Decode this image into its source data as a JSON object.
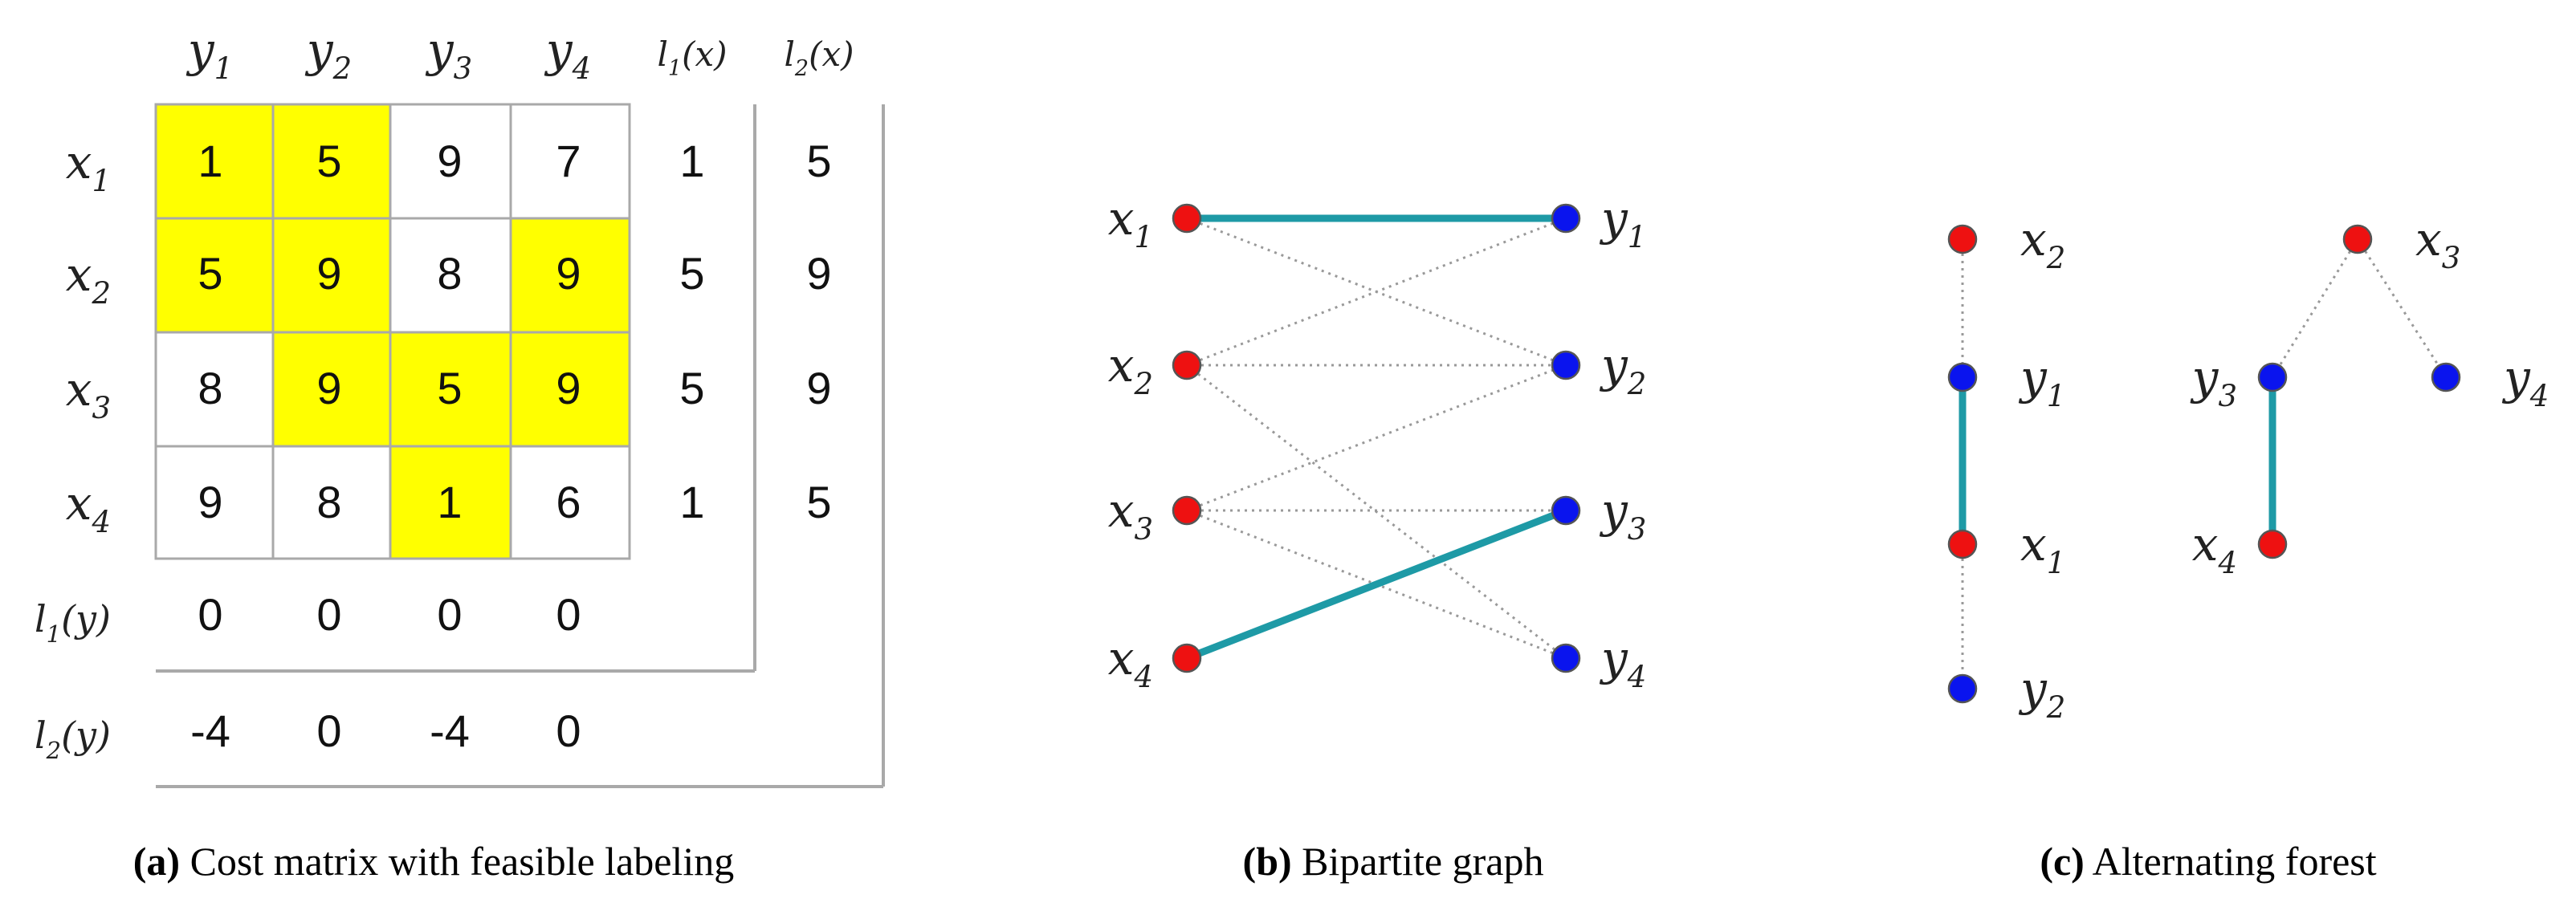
{
  "colors": {
    "highlight": "#ffff00",
    "matched_edge": "#1e9aa6",
    "x_node": "#ee1111",
    "y_node": "#0a14ee",
    "dotted_edge": "#999999",
    "grid": "#a9a9a9"
  },
  "panel_a": {
    "caption_tag": "(a)",
    "caption_text": " Cost matrix with feasible labeling",
    "col_headers": [
      {
        "main": "y",
        "sub": "1"
      },
      {
        "main": "y",
        "sub": "2"
      },
      {
        "main": "y",
        "sub": "3"
      },
      {
        "main": "y",
        "sub": "4"
      },
      {
        "main": "l",
        "sub": "1",
        "suffix": "(x)"
      },
      {
        "main": "l",
        "sub": "2",
        "suffix": "(x)"
      }
    ],
    "row_headers": [
      {
        "main": "x",
        "sub": "1"
      },
      {
        "main": "x",
        "sub": "2"
      },
      {
        "main": "x",
        "sub": "3"
      },
      {
        "main": "x",
        "sub": "4"
      },
      {
        "main": "l",
        "sub": "1",
        "suffix": "(y)"
      },
      {
        "main": "l",
        "sub": "2",
        "suffix": "(y)"
      }
    ],
    "matrix": [
      [
        1,
        5,
        9,
        7
      ],
      [
        5,
        9,
        8,
        9
      ],
      [
        8,
        9,
        5,
        9
      ],
      [
        9,
        8,
        1,
        6
      ]
    ],
    "highlighted": [
      [
        true,
        true,
        false,
        false
      ],
      [
        true,
        true,
        false,
        true
      ],
      [
        false,
        true,
        true,
        true
      ],
      [
        false,
        false,
        true,
        false
      ]
    ],
    "l1_x": [
      1,
      5,
      5,
      1
    ],
    "l2_x": [
      5,
      9,
      9,
      5
    ],
    "l1_y": [
      0,
      0,
      0,
      0
    ],
    "l2_y": [
      -4,
      0,
      -4,
      0
    ]
  },
  "panel_b": {
    "caption_tag": "(b)",
    "caption_text": " Bipartite graph",
    "left_nodes": [
      {
        "id": "x1",
        "main": "x",
        "sub": "1"
      },
      {
        "id": "x2",
        "main": "x",
        "sub": "2"
      },
      {
        "id": "x3",
        "main": "x",
        "sub": "3"
      },
      {
        "id": "x4",
        "main": "x",
        "sub": "4"
      }
    ],
    "right_nodes": [
      {
        "id": "y1",
        "main": "y",
        "sub": "1"
      },
      {
        "id": "y2",
        "main": "y",
        "sub": "2"
      },
      {
        "id": "y3",
        "main": "y",
        "sub": "3"
      },
      {
        "id": "y4",
        "main": "y",
        "sub": "4"
      }
    ],
    "matched_edges": [
      [
        "x1",
        "y1"
      ],
      [
        "x4",
        "y3"
      ]
    ],
    "equality_edges": [
      [
        "x1",
        "y2"
      ],
      [
        "x2",
        "y1"
      ],
      [
        "x2",
        "y2"
      ],
      [
        "x2",
        "y4"
      ],
      [
        "x3",
        "y2"
      ],
      [
        "x3",
        "y3"
      ],
      [
        "x3",
        "y4"
      ]
    ]
  },
  "panel_c": {
    "caption_tag": "(c)",
    "caption_text": " Alternating forest",
    "nodes": [
      {
        "id": "x2",
        "main": "x",
        "sub": "2",
        "kind": "x",
        "label_side": "right"
      },
      {
        "id": "y1",
        "main": "y",
        "sub": "1",
        "kind": "y",
        "label_side": "right"
      },
      {
        "id": "x1",
        "main": "x",
        "sub": "1",
        "kind": "x",
        "label_side": "right"
      },
      {
        "id": "y2",
        "main": "y",
        "sub": "2",
        "kind": "y",
        "label_side": "right"
      },
      {
        "id": "x3",
        "main": "x",
        "sub": "3",
        "kind": "x",
        "label_side": "right"
      },
      {
        "id": "y3",
        "main": "y",
        "sub": "3",
        "kind": "y",
        "label_side": "left"
      },
      {
        "id": "y4",
        "main": "y",
        "sub": "4",
        "kind": "y",
        "label_side": "right"
      },
      {
        "id": "x4",
        "main": "x",
        "sub": "4",
        "kind": "x",
        "label_side": "left"
      }
    ],
    "matched_edges": [
      [
        "y1",
        "x1"
      ],
      [
        "y3",
        "x4"
      ]
    ],
    "dotted_edges": [
      [
        "x2",
        "y1"
      ],
      [
        "x1",
        "y2"
      ],
      [
        "x3",
        "y3"
      ],
      [
        "x3",
        "y4"
      ]
    ]
  }
}
